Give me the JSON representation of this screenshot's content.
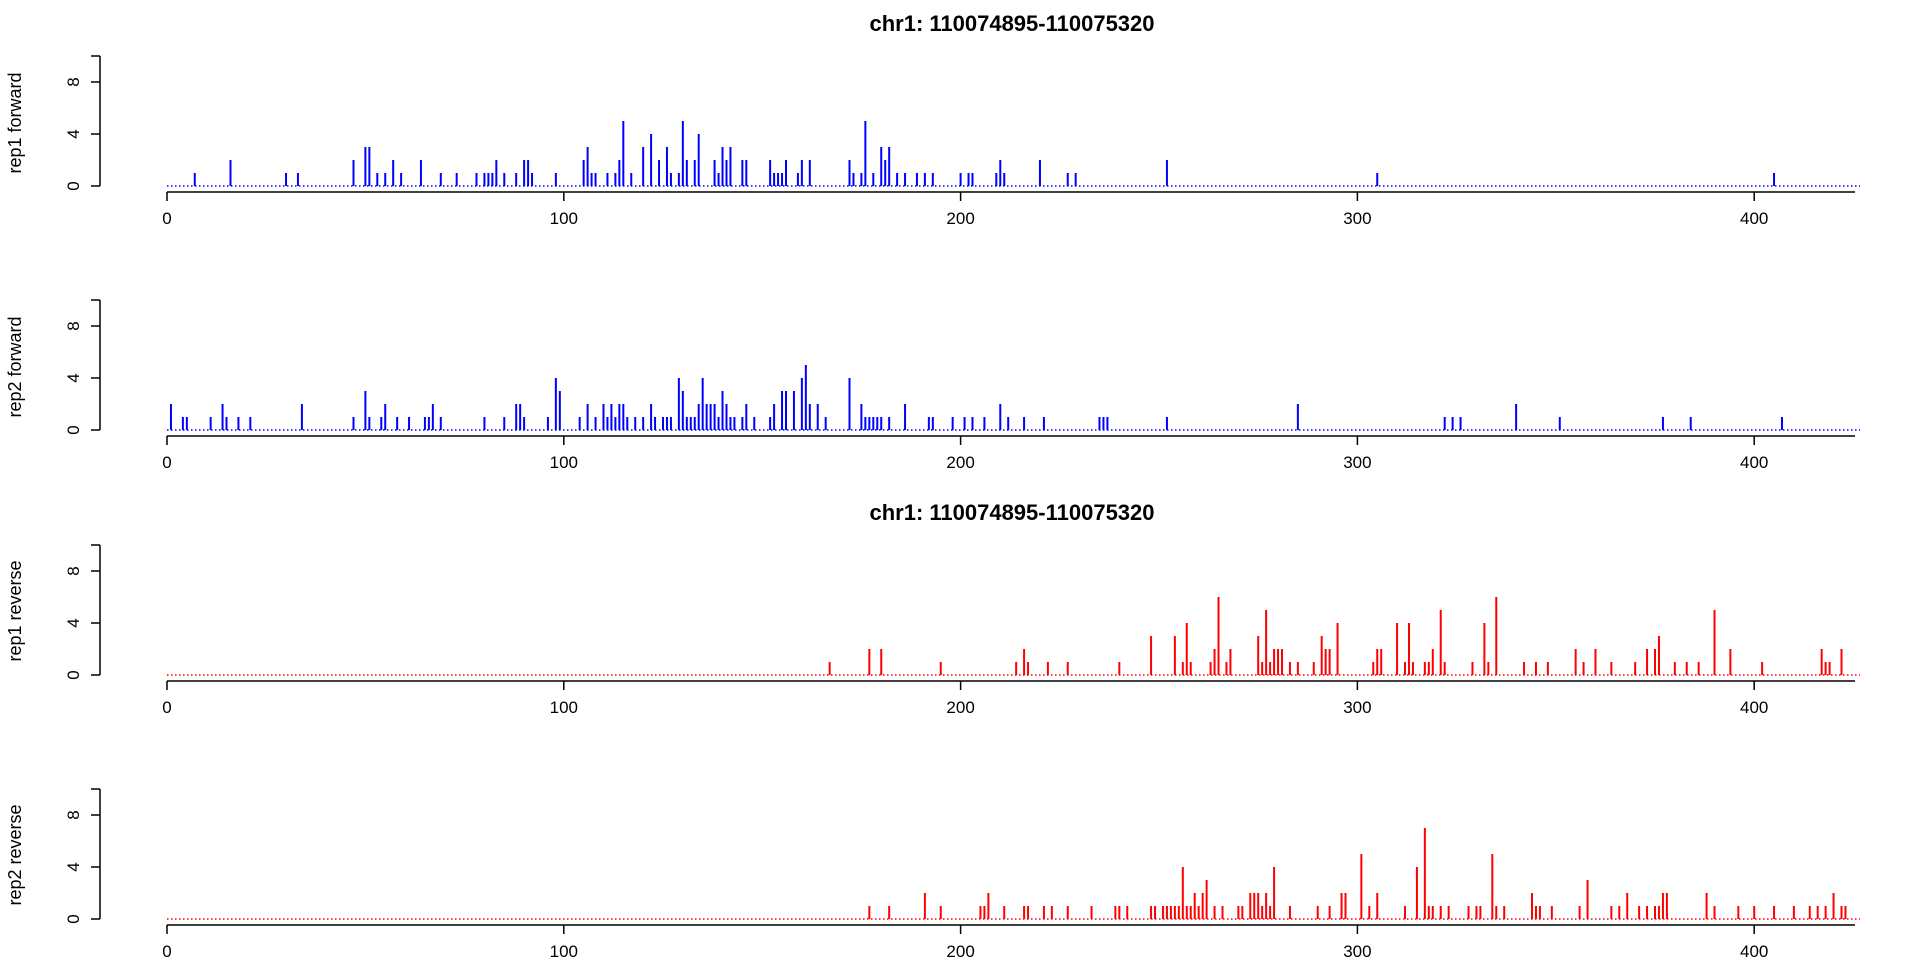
{
  "chart_data": [
    {
      "type": "bar",
      "title": "chr1: 110074895-110075320",
      "ylabel": "rep1 forward",
      "strand": "forward",
      "color": "#0000ff",
      "xlim": [
        0,
        426
      ],
      "ylim": [
        0,
        10
      ],
      "xticks": [
        0,
        100,
        200,
        300,
        400
      ],
      "yticks": [
        0,
        4,
        8
      ],
      "baseline": "dotted",
      "points": [
        [
          7,
          1
        ],
        [
          16,
          2
        ],
        [
          30,
          1
        ],
        [
          33,
          1
        ],
        [
          47,
          2
        ],
        [
          50,
          3
        ],
        [
          51,
          3
        ],
        [
          53,
          1
        ],
        [
          55,
          1
        ],
        [
          57,
          2
        ],
        [
          59,
          1
        ],
        [
          64,
          2
        ],
        [
          69,
          1
        ],
        [
          73,
          1
        ],
        [
          78,
          1
        ],
        [
          80,
          1
        ],
        [
          81,
          1
        ],
        [
          82,
          1
        ],
        [
          83,
          2
        ],
        [
          85,
          1
        ],
        [
          88,
          1
        ],
        [
          90,
          2
        ],
        [
          91,
          2
        ],
        [
          92,
          1
        ],
        [
          98,
          1
        ],
        [
          105,
          2
        ],
        [
          106,
          3
        ],
        [
          107,
          1
        ],
        [
          108,
          1
        ],
        [
          111,
          1
        ],
        [
          113,
          1
        ],
        [
          114,
          2
        ],
        [
          115,
          5
        ],
        [
          117,
          1
        ],
        [
          120,
          3
        ],
        [
          122,
          4
        ],
        [
          124,
          2
        ],
        [
          126,
          3
        ],
        [
          127,
          1
        ],
        [
          129,
          1
        ],
        [
          130,
          5
        ],
        [
          131,
          2
        ],
        [
          133,
          2
        ],
        [
          134,
          4
        ],
        [
          138,
          2
        ],
        [
          139,
          1
        ],
        [
          140,
          3
        ],
        [
          141,
          2
        ],
        [
          142,
          3
        ],
        [
          145,
          2
        ],
        [
          146,
          2
        ],
        [
          152,
          2
        ],
        [
          153,
          1
        ],
        [
          154,
          1
        ],
        [
          155,
          1
        ],
        [
          156,
          2
        ],
        [
          159,
          1
        ],
        [
          160,
          2
        ],
        [
          162,
          2
        ],
        [
          172,
          2
        ],
        [
          173,
          1
        ],
        [
          175,
          1
        ],
        [
          176,
          5
        ],
        [
          178,
          1
        ],
        [
          180,
          3
        ],
        [
          181,
          2
        ],
        [
          182,
          3
        ],
        [
          184,
          1
        ],
        [
          186,
          1
        ],
        [
          189,
          1
        ],
        [
          191,
          1
        ],
        [
          193,
          1
        ],
        [
          200,
          1
        ],
        [
          202,
          1
        ],
        [
          203,
          1
        ],
        [
          209,
          1
        ],
        [
          210,
          2
        ],
        [
          211,
          1
        ],
        [
          220,
          2
        ],
        [
          227,
          1
        ],
        [
          229,
          1
        ],
        [
          252,
          2
        ],
        [
          305,
          1
        ],
        [
          405,
          1
        ]
      ]
    },
    {
      "type": "bar",
      "title": "",
      "ylabel": "rep2 forward",
      "strand": "forward",
      "color": "#0000ff",
      "xlim": [
        0,
        426
      ],
      "ylim": [
        0,
        10
      ],
      "xticks": [
        0,
        100,
        200,
        300,
        400
      ],
      "yticks": [
        0,
        4,
        8
      ],
      "baseline": "dotted",
      "points": [
        [
          1,
          2
        ],
        [
          4,
          1
        ],
        [
          5,
          1
        ],
        [
          11,
          1
        ],
        [
          14,
          2
        ],
        [
          15,
          1
        ],
        [
          18,
          1
        ],
        [
          21,
          1
        ],
        [
          34,
          2
        ],
        [
          47,
          1
        ],
        [
          50,
          3
        ],
        [
          51,
          1
        ],
        [
          54,
          1
        ],
        [
          55,
          2
        ],
        [
          58,
          1
        ],
        [
          61,
          1
        ],
        [
          65,
          1
        ],
        [
          66,
          1
        ],
        [
          67,
          2
        ],
        [
          69,
          1
        ],
        [
          80,
          1
        ],
        [
          85,
          1
        ],
        [
          88,
          2
        ],
        [
          89,
          2
        ],
        [
          90,
          1
        ],
        [
          96,
          1
        ],
        [
          98,
          4
        ],
        [
          99,
          3
        ],
        [
          104,
          1
        ],
        [
          106,
          2
        ],
        [
          108,
          1
        ],
        [
          110,
          2
        ],
        [
          111,
          1
        ],
        [
          112,
          2
        ],
        [
          113,
          1
        ],
        [
          114,
          2
        ],
        [
          115,
          2
        ],
        [
          116,
          1
        ],
        [
          118,
          1
        ],
        [
          120,
          1
        ],
        [
          122,
          2
        ],
        [
          123,
          1
        ],
        [
          125,
          1
        ],
        [
          126,
          1
        ],
        [
          127,
          1
        ],
        [
          129,
          4
        ],
        [
          130,
          3
        ],
        [
          131,
          1
        ],
        [
          132,
          1
        ],
        [
          133,
          1
        ],
        [
          134,
          2
        ],
        [
          135,
          4
        ],
        [
          136,
          2
        ],
        [
          137,
          2
        ],
        [
          138,
          2
        ],
        [
          139,
          1
        ],
        [
          140,
          3
        ],
        [
          141,
          2
        ],
        [
          142,
          1
        ],
        [
          143,
          1
        ],
        [
          145,
          1
        ],
        [
          146,
          2
        ],
        [
          148,
          1
        ],
        [
          152,
          1
        ],
        [
          153,
          2
        ],
        [
          155,
          3
        ],
        [
          156,
          3
        ],
        [
          158,
          3
        ],
        [
          160,
          4
        ],
        [
          161,
          5
        ],
        [
          162,
          2
        ],
        [
          164,
          2
        ],
        [
          166,
          1
        ],
        [
          172,
          4
        ],
        [
          175,
          2
        ],
        [
          176,
          1
        ],
        [
          177,
          1
        ],
        [
          178,
          1
        ],
        [
          179,
          1
        ],
        [
          180,
          1
        ],
        [
          182,
          1
        ],
        [
          186,
          2
        ],
        [
          192,
          1
        ],
        [
          193,
          1
        ],
        [
          198,
          1
        ],
        [
          201,
          1
        ],
        [
          203,
          1
        ],
        [
          206,
          1
        ],
        [
          210,
          2
        ],
        [
          212,
          1
        ],
        [
          216,
          1
        ],
        [
          221,
          1
        ],
        [
          235,
          1
        ],
        [
          236,
          1
        ],
        [
          237,
          1
        ],
        [
          252,
          1
        ],
        [
          285,
          2
        ],
        [
          322,
          1
        ],
        [
          324,
          1
        ],
        [
          326,
          1
        ],
        [
          340,
          2
        ],
        [
          351,
          1
        ],
        [
          377,
          1
        ],
        [
          384,
          1
        ],
        [
          407,
          1
        ]
      ]
    },
    {
      "type": "bar",
      "title": "chr1: 110074895-110075320",
      "ylabel": "rep1 reverse",
      "strand": "reverse",
      "color": "#ff0000",
      "xlim": [
        0,
        426
      ],
      "ylim": [
        0,
        10
      ],
      "xticks": [
        0,
        100,
        200,
        300,
        400
      ],
      "yticks": [
        0,
        4,
        8
      ],
      "baseline": "dotted",
      "points": [
        [
          167,
          1
        ],
        [
          177,
          2
        ],
        [
          180,
          2
        ],
        [
          195,
          1
        ],
        [
          214,
          1
        ],
        [
          216,
          2
        ],
        [
          217,
          1
        ],
        [
          222,
          1
        ],
        [
          227,
          1
        ],
        [
          240,
          1
        ],
        [
          248,
          3
        ],
        [
          254,
          3
        ],
        [
          256,
          1
        ],
        [
          257,
          4
        ],
        [
          258,
          1
        ],
        [
          263,
          1
        ],
        [
          264,
          2
        ],
        [
          265,
          6
        ],
        [
          267,
          1
        ],
        [
          268,
          2
        ],
        [
          275,
          3
        ],
        [
          276,
          1
        ],
        [
          277,
          5
        ],
        [
          278,
          1
        ],
        [
          279,
          2
        ],
        [
          280,
          2
        ],
        [
          281,
          2
        ],
        [
          283,
          1
        ],
        [
          285,
          1
        ],
        [
          289,
          1
        ],
        [
          291,
          3
        ],
        [
          292,
          2
        ],
        [
          293,
          2
        ],
        [
          295,
          4
        ],
        [
          304,
          1
        ],
        [
          305,
          2
        ],
        [
          306,
          2
        ],
        [
          310,
          4
        ],
        [
          312,
          1
        ],
        [
          313,
          4
        ],
        [
          314,
          1
        ],
        [
          317,
          1
        ],
        [
          318,
          1
        ],
        [
          319,
          2
        ],
        [
          321,
          5
        ],
        [
          322,
          1
        ],
        [
          329,
          1
        ],
        [
          332,
          4
        ],
        [
          333,
          1
        ],
        [
          335,
          6
        ],
        [
          342,
          1
        ],
        [
          345,
          1
        ],
        [
          348,
          1
        ],
        [
          355,
          2
        ],
        [
          357,
          1
        ],
        [
          360,
          2
        ],
        [
          364,
          1
        ],
        [
          370,
          1
        ],
        [
          373,
          2
        ],
        [
          375,
          2
        ],
        [
          376,
          3
        ],
        [
          380,
          1
        ],
        [
          383,
          1
        ],
        [
          386,
          1
        ],
        [
          390,
          5
        ],
        [
          394,
          2
        ],
        [
          402,
          1
        ],
        [
          417,
          2
        ],
        [
          418,
          1
        ],
        [
          419,
          1
        ],
        [
          422,
          2
        ]
      ]
    },
    {
      "type": "bar",
      "title": "",
      "ylabel": "rep2 reverse",
      "strand": "reverse",
      "color": "#ff0000",
      "xlim": [
        0,
        426
      ],
      "ylim": [
        0,
        10
      ],
      "xticks": [
        0,
        100,
        200,
        300,
        400
      ],
      "yticks": [
        0,
        4,
        8
      ],
      "baseline": "dotted",
      "points": [
        [
          177,
          1
        ],
        [
          182,
          1
        ],
        [
          191,
          2
        ],
        [
          195,
          1
        ],
        [
          205,
          1
        ],
        [
          206,
          1
        ],
        [
          207,
          2
        ],
        [
          211,
          1
        ],
        [
          216,
          1
        ],
        [
          217,
          1
        ],
        [
          221,
          1
        ],
        [
          223,
          1
        ],
        [
          227,
          1
        ],
        [
          233,
          1
        ],
        [
          239,
          1
        ],
        [
          240,
          1
        ],
        [
          242,
          1
        ],
        [
          248,
          1
        ],
        [
          249,
          1
        ],
        [
          251,
          1
        ],
        [
          252,
          1
        ],
        [
          253,
          1
        ],
        [
          254,
          1
        ],
        [
          255,
          1
        ],
        [
          256,
          4
        ],
        [
          257,
          1
        ],
        [
          258,
          1
        ],
        [
          259,
          2
        ],
        [
          260,
          1
        ],
        [
          261,
          2
        ],
        [
          262,
          3
        ],
        [
          264,
          1
        ],
        [
          266,
          1
        ],
        [
          270,
          1
        ],
        [
          271,
          1
        ],
        [
          273,
          2
        ],
        [
          274,
          2
        ],
        [
          275,
          2
        ],
        [
          276,
          1
        ],
        [
          277,
          2
        ],
        [
          278,
          1
        ],
        [
          279,
          4
        ],
        [
          283,
          1
        ],
        [
          290,
          1
        ],
        [
          293,
          1
        ],
        [
          296,
          2
        ],
        [
          297,
          2
        ],
        [
          301,
          5
        ],
        [
          303,
          1
        ],
        [
          305,
          2
        ],
        [
          312,
          1
        ],
        [
          315,
          4
        ],
        [
          317,
          7
        ],
        [
          318,
          1
        ],
        [
          319,
          1
        ],
        [
          321,
          1
        ],
        [
          323,
          1
        ],
        [
          328,
          1
        ],
        [
          330,
          1
        ],
        [
          331,
          1
        ],
        [
          334,
          5
        ],
        [
          335,
          1
        ],
        [
          337,
          1
        ],
        [
          344,
          2
        ],
        [
          345,
          1
        ],
        [
          346,
          1
        ],
        [
          349,
          1
        ],
        [
          356,
          1
        ],
        [
          358,
          3
        ],
        [
          364,
          1
        ],
        [
          366,
          1
        ],
        [
          368,
          2
        ],
        [
          371,
          1
        ],
        [
          373,
          1
        ],
        [
          375,
          1
        ],
        [
          376,
          1
        ],
        [
          377,
          2
        ],
        [
          378,
          2
        ],
        [
          388,
          2
        ],
        [
          390,
          1
        ],
        [
          396,
          1
        ],
        [
          400,
          1
        ],
        [
          405,
          1
        ],
        [
          410,
          1
        ],
        [
          414,
          1
        ],
        [
          416,
          1
        ],
        [
          418,
          1
        ],
        [
          420,
          2
        ],
        [
          422,
          1
        ],
        [
          423,
          1
        ]
      ]
    }
  ]
}
